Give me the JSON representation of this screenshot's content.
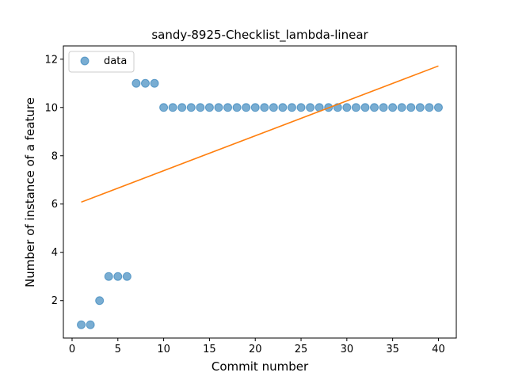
{
  "chart_data": {
    "type": "scatter",
    "title": "sandy-8925-Checklist_lambda-linear",
    "xlabel": "Commit number",
    "ylabel": "Number of instance of a feature",
    "xlim": [
      -0.95,
      41.95
    ],
    "ylim": [
      0.45,
      12.55
    ],
    "xticks": [
      0,
      5,
      10,
      15,
      20,
      25,
      30,
      35,
      40
    ],
    "yticks": [
      2,
      4,
      6,
      8,
      10,
      12
    ],
    "grid": false,
    "legend_position": "top-left",
    "series": [
      {
        "name": "data",
        "kind": "scatter",
        "color": "#1f77b4",
        "x": [
          1,
          2,
          3,
          4,
          5,
          6,
          7,
          8,
          9,
          10,
          11,
          12,
          13,
          14,
          15,
          16,
          17,
          18,
          19,
          20,
          21,
          22,
          23,
          24,
          25,
          26,
          27,
          28,
          29,
          30,
          31,
          32,
          33,
          34,
          35,
          36,
          37,
          38,
          39,
          40
        ],
        "y": [
          1,
          1,
          2,
          3,
          3,
          3,
          11,
          11,
          11,
          10,
          10,
          10,
          10,
          10,
          10,
          10,
          10,
          10,
          10,
          10,
          10,
          10,
          10,
          10,
          10,
          10,
          10,
          10,
          10,
          10,
          10,
          10,
          10,
          10,
          10,
          10,
          10,
          10,
          10,
          10
        ]
      },
      {
        "kind": "line",
        "color": "#ff7f0e",
        "x": [
          1,
          40
        ],
        "y": [
          6.08,
          11.72
        ]
      }
    ]
  }
}
